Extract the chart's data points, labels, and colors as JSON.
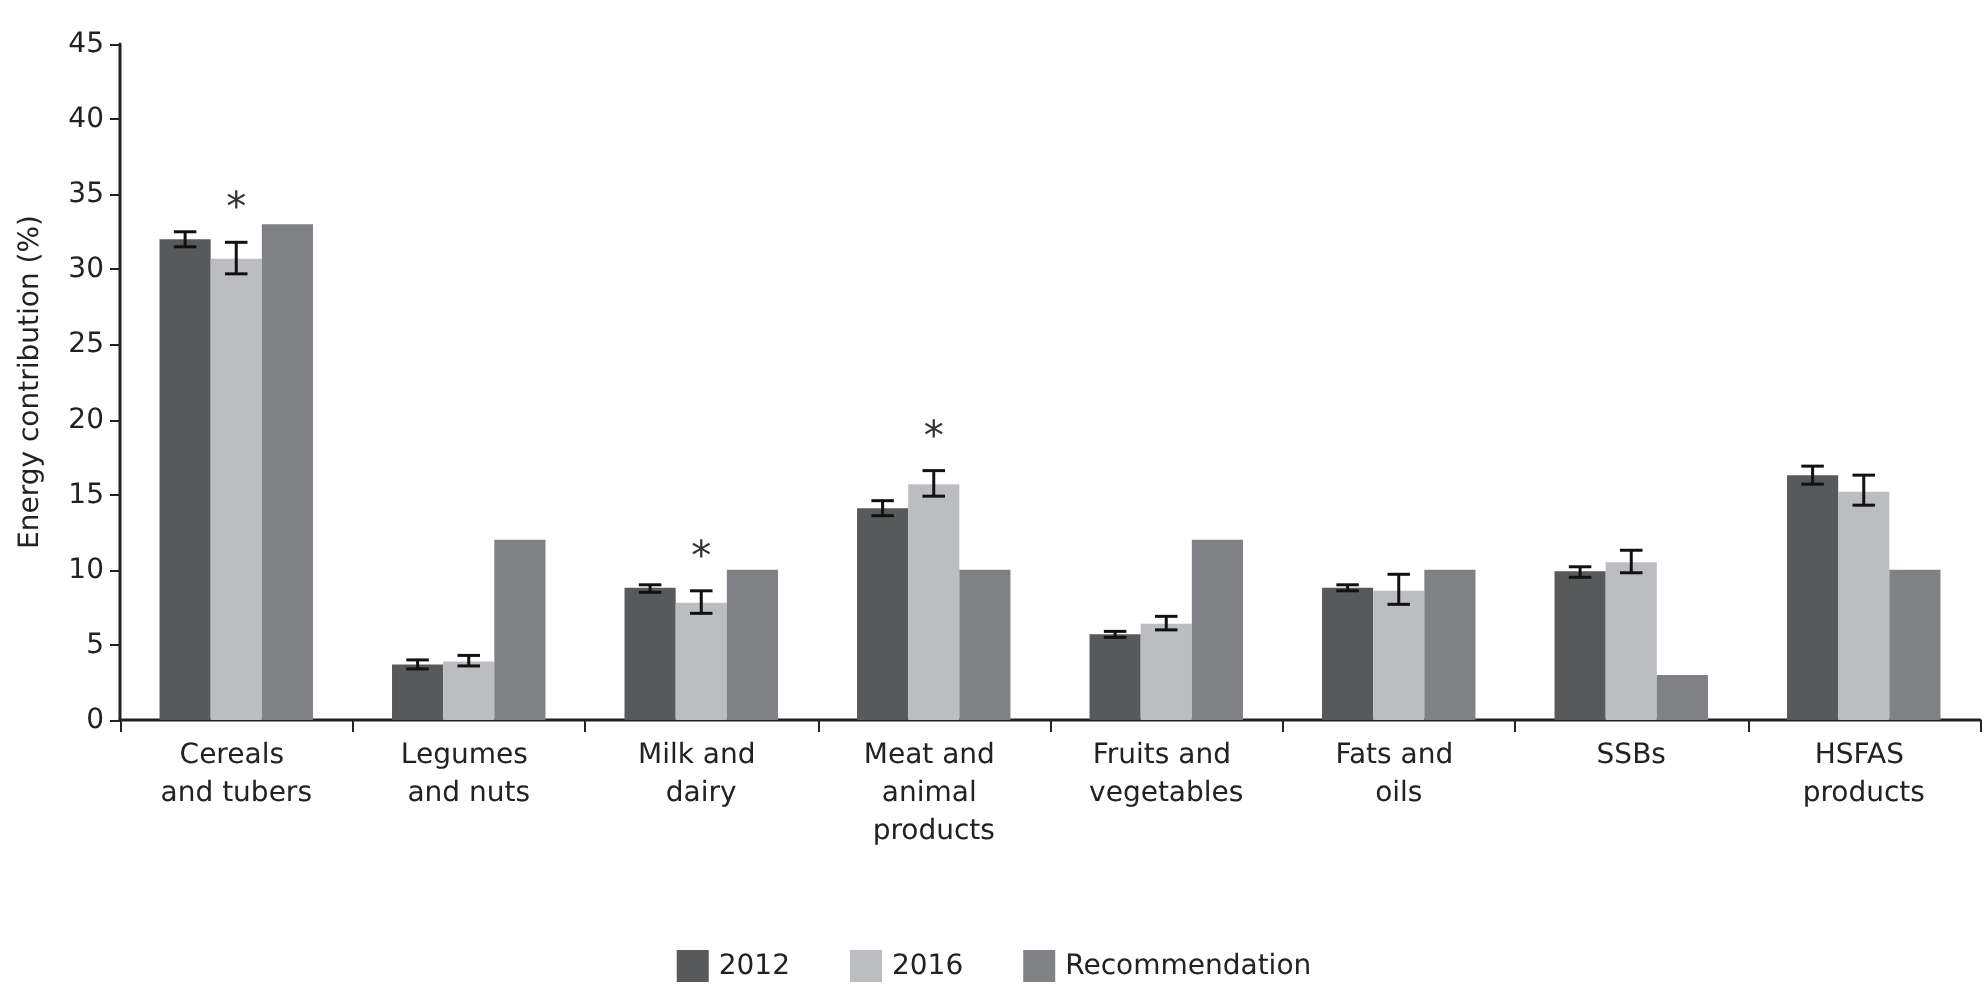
{
  "chart_data": {
    "type": "bar",
    "ylabel": "Energy contribution (%)",
    "categories": [
      "Cereals and tubers",
      "Legumes and nuts",
      "Milk and dairy",
      "Meat and animal products",
      "Fruits and vegetables",
      "Fats and oils",
      "SSBs",
      "HSFAS products"
    ],
    "series": [
      {
        "name": "2012",
        "color": "#58595b",
        "values": [
          32.0,
          3.7,
          8.8,
          14.1,
          5.7,
          8.8,
          9.9,
          16.3
        ],
        "errors": [
          [
            31.5,
            32.5
          ],
          [
            3.4,
            4.0
          ],
          [
            8.5,
            9.0
          ],
          [
            13.6,
            14.6
          ],
          [
            5.5,
            5.9
          ],
          [
            8.6,
            9.0
          ],
          [
            9.5,
            10.2
          ],
          [
            15.7,
            16.9
          ]
        ]
      },
      {
        "name": "2016",
        "color": "#bcbdc0",
        "values": [
          30.7,
          3.9,
          7.8,
          15.7,
          6.4,
          8.6,
          10.5,
          15.2
        ],
        "errors": [
          [
            29.7,
            31.8
          ],
          [
            3.6,
            4.3
          ],
          [
            7.1,
            8.6
          ],
          [
            14.9,
            16.6
          ],
          [
            6.0,
            6.9
          ],
          [
            7.7,
            9.7
          ],
          [
            9.8,
            11.3
          ],
          [
            14.3,
            16.3
          ]
        ]
      },
      {
        "name": "Recommendation",
        "color": "#808184",
        "values": [
          33,
          12,
          10,
          10,
          12,
          10,
          3,
          10
        ]
      }
    ],
    "ylim": [
      0,
      45
    ],
    "yticks": [
      0,
      5,
      10,
      15,
      20,
      25,
      30,
      35,
      40,
      45
    ],
    "grid": false,
    "legend": "bottom",
    "annotations": [
      {
        "text": "*",
        "x": "Cereals and tubers",
        "y": 31.8
      },
      {
        "text": "*",
        "x": "Milk and dairy",
        "y": 8.6
      },
      {
        "text": "*",
        "x": "Meat and animal products",
        "y": 16.6
      }
    ]
  }
}
